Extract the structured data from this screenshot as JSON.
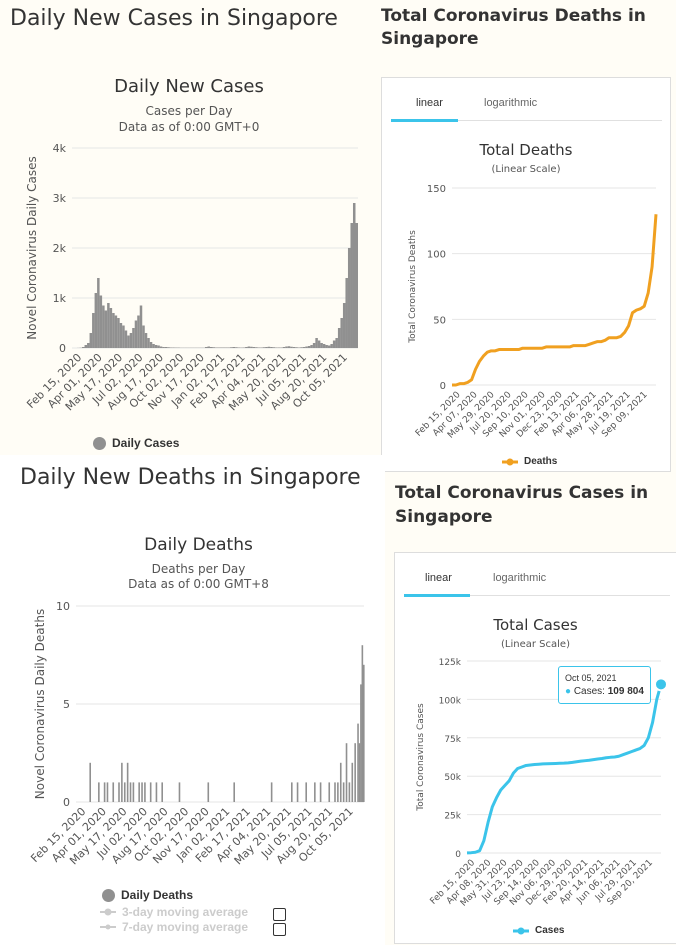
{
  "panels": {
    "daily_cases": {
      "heading": "Daily New Cases in Singapore",
      "chart_title": "Daily New Cases",
      "subtitle_1": "Cases per Day",
      "subtitle_2": "Data as of 0:00 GMT+0",
      "legend_label": "Daily Cases"
    },
    "total_deaths": {
      "heading_1": "Total Coronavirus Deaths in",
      "heading_2": "Singapore",
      "tab_linear": "linear",
      "tab_log": "logarithmic",
      "chart_title": "Total Deaths",
      "subtitle": "(Linear Scale)",
      "legend_label": "Deaths"
    },
    "daily_deaths": {
      "heading": "Daily New Deaths in Singapore",
      "chart_title": "Daily Deaths",
      "subtitle_1": "Deaths per Day",
      "subtitle_2": "Data as of 0:00 GMT+8",
      "legend_label": "Daily Deaths",
      "legend_ma3": "3-day moving average",
      "legend_ma7": "7-day moving average"
    },
    "total_cases": {
      "heading_1": "Total Coronavirus Cases in",
      "heading_2": "Singapore",
      "tab_linear": "linear",
      "tab_log": "logarithmic",
      "chart_title": "Total Cases",
      "subtitle": "(Linear Scale)",
      "legend_label": "Cases",
      "tooltip_date": "Oct 05, 2021",
      "tooltip_label": "Cases:",
      "tooltip_value": "109 804"
    }
  },
  "colors": {
    "bar_gray": "#909090",
    "deaths_orange": "#f0a020",
    "cases_blue": "#3bc4ea",
    "grid": "#e6e6e6"
  },
  "chart_data": [
    {
      "type": "bar",
      "title": "Daily New Cases",
      "ylabel": "Novel Coronavirus Daily Cases",
      "ylim": [
        0,
        4000
      ],
      "yticks": [
        "0",
        "1k",
        "2k",
        "3k",
        "4k"
      ],
      "tick_labels": [
        "Feb 15, 2020",
        "Apr 01, 2020",
        "May 17, 2020",
        "Jul 02, 2020",
        "Aug 17, 2020",
        "Oct 02, 2020",
        "Nov 17, 2020",
        "Jan 02, 2021",
        "Feb 17, 2021",
        "Apr 04, 2021",
        "May 20, 2021",
        "Jul 05, 2021",
        "Aug 20, 2021",
        "Oct 05, 2021"
      ],
      "series": [
        {
          "name": "Daily Cases",
          "values": [
            0,
            0,
            2,
            5,
            20,
            60,
            100,
            300,
            700,
            1100,
            1400,
            1050,
            850,
            750,
            900,
            800,
            700,
            650,
            600,
            500,
            450,
            350,
            250,
            300,
            400,
            550,
            650,
            850,
            450,
            300,
            200,
            120,
            80,
            60,
            50,
            30,
            20,
            20,
            15,
            10,
            10,
            8,
            8,
            5,
            5,
            5,
            5,
            5,
            5,
            5,
            5,
            5,
            5,
            20,
            30,
            20,
            15,
            10,
            10,
            10,
            10,
            10,
            10,
            15,
            20,
            15,
            10,
            8,
            10,
            20,
            30,
            25,
            20,
            15,
            10,
            10,
            15,
            20,
            25,
            20,
            15,
            10,
            10,
            10,
            20,
            30,
            35,
            25,
            20,
            15,
            10,
            15,
            20,
            30,
            40,
            60,
            100,
            200,
            150,
            100,
            80,
            60,
            50,
            80,
            150,
            200,
            400,
            600,
            900,
            1400,
            2000,
            2500,
            2900,
            2500
          ]
        }
      ],
      "legend": "bottom-left"
    },
    {
      "type": "line",
      "title": "Total Deaths",
      "ylabel": "Total Coronavirus Deaths",
      "ylim": [
        0,
        150
      ],
      "yticks": [
        "0",
        "50",
        "100",
        "150"
      ],
      "tick_labels": [
        "Feb 15, 2020",
        "Apr 07, 2020",
        "May 29, 2020",
        "Jul 20, 2020",
        "Sep 10, 2020",
        "Nov 01, 2020",
        "Dec 23, 2020",
        "Feb 13, 2021",
        "Apr 06, 2021",
        "May 28, 2021",
        "Jul 19, 2021",
        "Sep 09, 2021"
      ],
      "series": [
        {
          "name": "Deaths",
          "values": [
            0,
            0,
            1,
            1,
            2,
            4,
            12,
            18,
            22,
            25,
            26,
            26,
            27,
            27,
            27,
            27,
            27,
            27,
            28,
            28,
            28,
            28,
            28,
            28,
            29,
            29,
            29,
            29,
            29,
            29,
            29,
            30,
            30,
            30,
            30,
            31,
            32,
            33,
            33,
            34,
            36,
            36,
            36,
            37,
            40,
            45,
            55,
            57,
            58,
            60,
            70,
            90,
            130
          ]
        }
      ],
      "legend": "bottom-center"
    },
    {
      "type": "bar",
      "title": "Daily Deaths",
      "ylabel": "Novel Coronavirus Daily Deaths",
      "ylim": [
        0,
        10
      ],
      "yticks": [
        "0",
        "5",
        "10"
      ],
      "tick_labels": [
        "Feb 15, 2020",
        "Apr 01, 2020",
        "May 17, 2020",
        "Jul 02, 2020",
        "Aug 17, 2020",
        "Oct 02, 2020",
        "Nov 17, 2020",
        "Jan 02, 2021",
        "Feb 17, 2021",
        "Apr 04, 2021",
        "May 20, 2021",
        "Jul 05, 2021",
        "Aug 20, 2021",
        "Oct 05, 2021"
      ],
      "events": [
        [
          0.05,
          2
        ],
        [
          0.08,
          1
        ],
        [
          0.1,
          1
        ],
        [
          0.11,
          1
        ],
        [
          0.13,
          1
        ],
        [
          0.15,
          1
        ],
        [
          0.16,
          2
        ],
        [
          0.17,
          1
        ],
        [
          0.18,
          2
        ],
        [
          0.19,
          1
        ],
        [
          0.2,
          1
        ],
        [
          0.22,
          1
        ],
        [
          0.23,
          1
        ],
        [
          0.24,
          1
        ],
        [
          0.26,
          1
        ],
        [
          0.28,
          1
        ],
        [
          0.3,
          1
        ],
        [
          0.36,
          1
        ],
        [
          0.46,
          1
        ],
        [
          0.55,
          1
        ],
        [
          0.68,
          1
        ],
        [
          0.75,
          1
        ],
        [
          0.77,
          1
        ],
        [
          0.8,
          1
        ],
        [
          0.83,
          1
        ],
        [
          0.85,
          1
        ],
        [
          0.88,
          1
        ],
        [
          0.9,
          1
        ],
        [
          0.91,
          1
        ],
        [
          0.92,
          2
        ],
        [
          0.93,
          1
        ],
        [
          0.94,
          3
        ],
        [
          0.95,
          1
        ],
        [
          0.96,
          2
        ],
        [
          0.97,
          3
        ],
        [
          0.98,
          4
        ],
        [
          0.985,
          3
        ],
        [
          0.99,
          6
        ],
        [
          0.995,
          8
        ],
        [
          1.0,
          7
        ]
      ],
      "legend": "bottom-left"
    },
    {
      "type": "line",
      "title": "Total Cases",
      "ylabel": "Total Coronavirus Cases",
      "ylim": [
        0,
        125000
      ],
      "yticks": [
        "0",
        "25k",
        "50k",
        "75k",
        "100k",
        "125k"
      ],
      "tick_labels": [
        "Feb 15, 2020",
        "Apr 08, 2020",
        "May 31, 2020",
        "Jul 23, 2020",
        "Sep 14, 2020",
        "Nov 06, 2020",
        "Dec 29, 2020",
        "Feb 20, 2021",
        "Apr 14, 2021",
        "Jun 06, 2021",
        "Jul 29, 2021",
        "Sep 20, 2021"
      ],
      "series": [
        {
          "name": "Cases",
          "values": [
            100,
            200,
            500,
            1500,
            8000,
            20000,
            30000,
            36000,
            41000,
            44000,
            47000,
            52000,
            55000,
            56000,
            57000,
            57300,
            57600,
            57800,
            58000,
            58100,
            58200,
            58300,
            58400,
            58500,
            58700,
            59000,
            59400,
            59800,
            60100,
            60400,
            60800,
            61200,
            61500,
            62000,
            62300,
            62500,
            63000,
            64000,
            65000,
            66000,
            67000,
            68000,
            70000,
            75000,
            85000,
            100000,
            109804
          ]
        }
      ],
      "tooltip": {
        "date": "Oct 05, 2021",
        "value": 109804
      },
      "legend": "bottom-center"
    }
  ]
}
